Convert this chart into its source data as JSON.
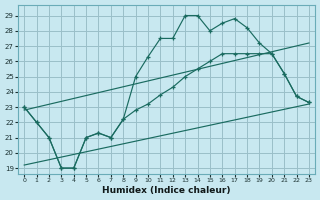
{
  "xlabel": "Humidex (Indice chaleur)",
  "background_color": "#c8e8f0",
  "grid_color": "#9abfc8",
  "line_color": "#1a6b60",
  "xlim": [
    -0.5,
    23.5
  ],
  "ylim": [
    18.6,
    29.7
  ],
  "yticks": [
    19,
    20,
    21,
    22,
    23,
    24,
    25,
    26,
    27,
    28,
    29
  ],
  "xticks": [
    0,
    1,
    2,
    3,
    4,
    5,
    6,
    7,
    8,
    9,
    10,
    11,
    12,
    13,
    14,
    15,
    16,
    17,
    18,
    19,
    20,
    21,
    22,
    23
  ],
  "curve1_x": [
    0,
    1,
    2,
    3,
    4,
    5,
    6,
    7,
    8,
    9,
    10,
    11,
    12,
    13,
    14,
    15,
    16,
    17,
    18,
    19,
    20,
    21,
    22,
    23
  ],
  "curve1_y": [
    23,
    22,
    21,
    19,
    19,
    21,
    21.3,
    21,
    22.2,
    25,
    26.3,
    27.5,
    27.5,
    29,
    29,
    28,
    28.5,
    28.8,
    28.2,
    27.2,
    26.5,
    25.2,
    23.7,
    23.3
  ],
  "curve2_x": [
    0,
    1,
    2,
    3,
    4,
    5,
    6,
    7,
    8,
    9,
    10,
    11,
    12,
    13,
    14,
    15,
    16,
    17,
    18,
    19,
    20,
    21,
    22,
    23
  ],
  "curve2_y": [
    23,
    22,
    21,
    19,
    19,
    21,
    21.3,
    21,
    22.2,
    22.8,
    23.2,
    23.8,
    24.3,
    25,
    25.5,
    26,
    26.5,
    26.5,
    26.5,
    26.5,
    26.5,
    25.2,
    23.7,
    23.3
  ],
  "line3_x": [
    0,
    23
  ],
  "line3_y": [
    19.2,
    23.2
  ],
  "line4_x": [
    0,
    23
  ],
  "line4_y": [
    22.8,
    27.2
  ]
}
